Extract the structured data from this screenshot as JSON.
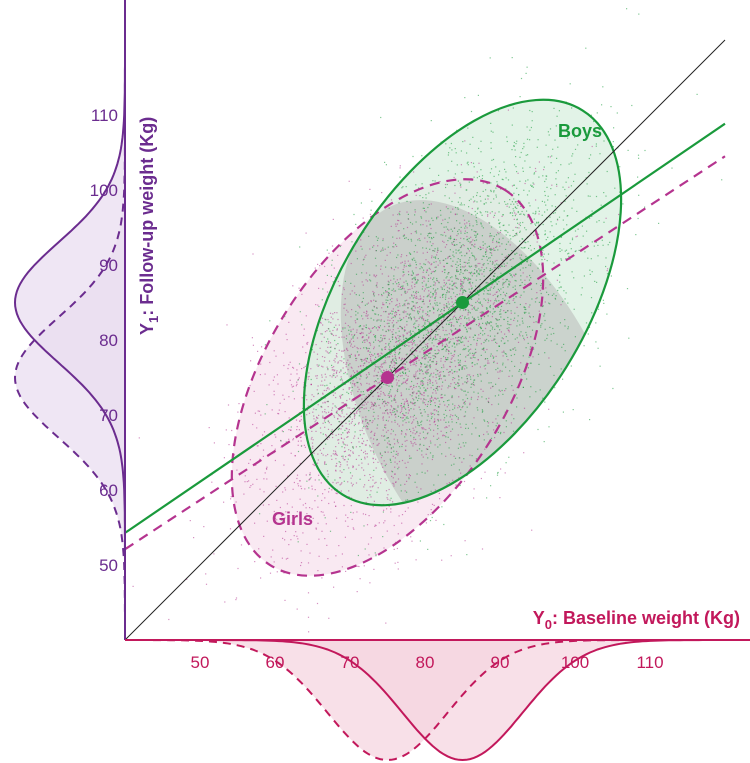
{
  "chart_data": {
    "type": "scatter",
    "x_axis": {
      "label": "Y",
      "label_subscript": "0",
      "label_rest": ": Baseline weight (Kg)",
      "ticks": [
        50,
        60,
        70,
        80,
        90,
        100,
        110
      ],
      "range": [
        40,
        120
      ]
    },
    "y_axis": {
      "label": "Y",
      "label_subscript": "1",
      "label_rest": ": Follow-up weight (Kg)",
      "ticks": [
        50,
        60,
        70,
        80,
        90,
        100,
        110
      ],
      "range": [
        40,
        120
      ]
    },
    "groups": [
      {
        "name": "Boys",
        "color": "#1a9a3c",
        "fill": "#d5eedd",
        "line_style": "solid",
        "mean": [
          85,
          85
        ],
        "ellipse": {
          "center": [
            85,
            85
          ],
          "semi_major": 30.2,
          "semi_minor": 16.3,
          "angle_deg": 58
        },
        "regression": {
          "intercept": 27.0,
          "slope": 0.682
        },
        "marginal_x": {
          "mean": 85,
          "sd": 8.0
        },
        "marginal_y": {
          "mean": 85,
          "sd": 8.0
        }
      },
      {
        "name": "Girls",
        "color": "#b5348f",
        "fill": "#f6dfec",
        "line_style": "dashed",
        "mean": [
          75,
          75
        ],
        "ellipse": {
          "center": [
            75,
            75
          ],
          "semi_major": 29.5,
          "semi_minor": 16.1,
          "angle_deg": 58
        },
        "regression": {
          "intercept": 25.9,
          "slope": 0.655
        },
        "marginal_x": {
          "mean": 75,
          "sd": 8.0
        },
        "marginal_y": {
          "mean": 75,
          "sd": 8.0
        }
      }
    ],
    "identity_line": true,
    "marginal_colors": {
      "y": "#6b2c8f",
      "y_fill": "#e9def0",
      "x": "#c2185b",
      "x_fill": "#f6d6e0"
    }
  }
}
